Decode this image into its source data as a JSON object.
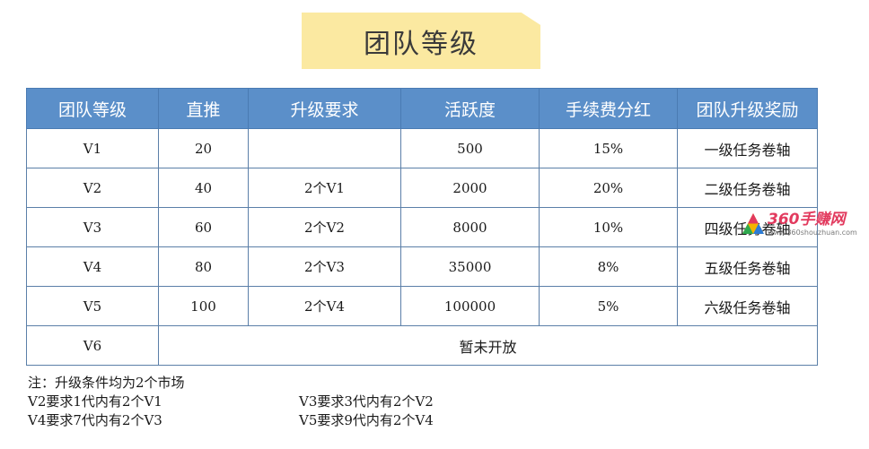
{
  "title": "团队等级",
  "table": {
    "headers": [
      "团队等级",
      "直推",
      "升级要求",
      "活跃度",
      "手续费分红",
      "团队升级奖励"
    ],
    "rows": [
      {
        "level": "V1",
        "direct": "20",
        "requirement": "",
        "activity": "500",
        "fee_share": "15%",
        "reward": "一级任务卷轴"
      },
      {
        "level": "V2",
        "direct": "40",
        "requirement": "2个V1",
        "activity": "2000",
        "fee_share": "20%",
        "reward": "二级任务卷轴"
      },
      {
        "level": "V3",
        "direct": "60",
        "requirement": "2个V2",
        "activity": "8000",
        "fee_share": "10%",
        "reward": "四级任务卷轴"
      },
      {
        "level": "V4",
        "direct": "80",
        "requirement": "2个V3",
        "activity": "35000",
        "fee_share": "8%",
        "reward": "五级任务卷轴"
      },
      {
        "level": "V5",
        "direct": "100",
        "requirement": "2个V4",
        "activity": "100000",
        "fee_share": "5%",
        "reward": "六级任务卷轴"
      }
    ],
    "v6": {
      "level": "V6",
      "status": "暂未开放"
    }
  },
  "notes": {
    "heading": "注：升级条件均为2个市场",
    "lines": [
      [
        "V2要求1代内有2个V1",
        "V3要求3代内有2个V2"
      ],
      [
        "V4要求7代内有2个V3",
        "V5要求9代内有2个V4"
      ]
    ]
  },
  "watermark": {
    "main": "360手赚网",
    "sub": "www.360shouzhuan.com"
  },
  "colors": {
    "header_bg": "#5b8fc9",
    "banner_bg": "#fbe9a1",
    "border": "#5b7fa8"
  }
}
